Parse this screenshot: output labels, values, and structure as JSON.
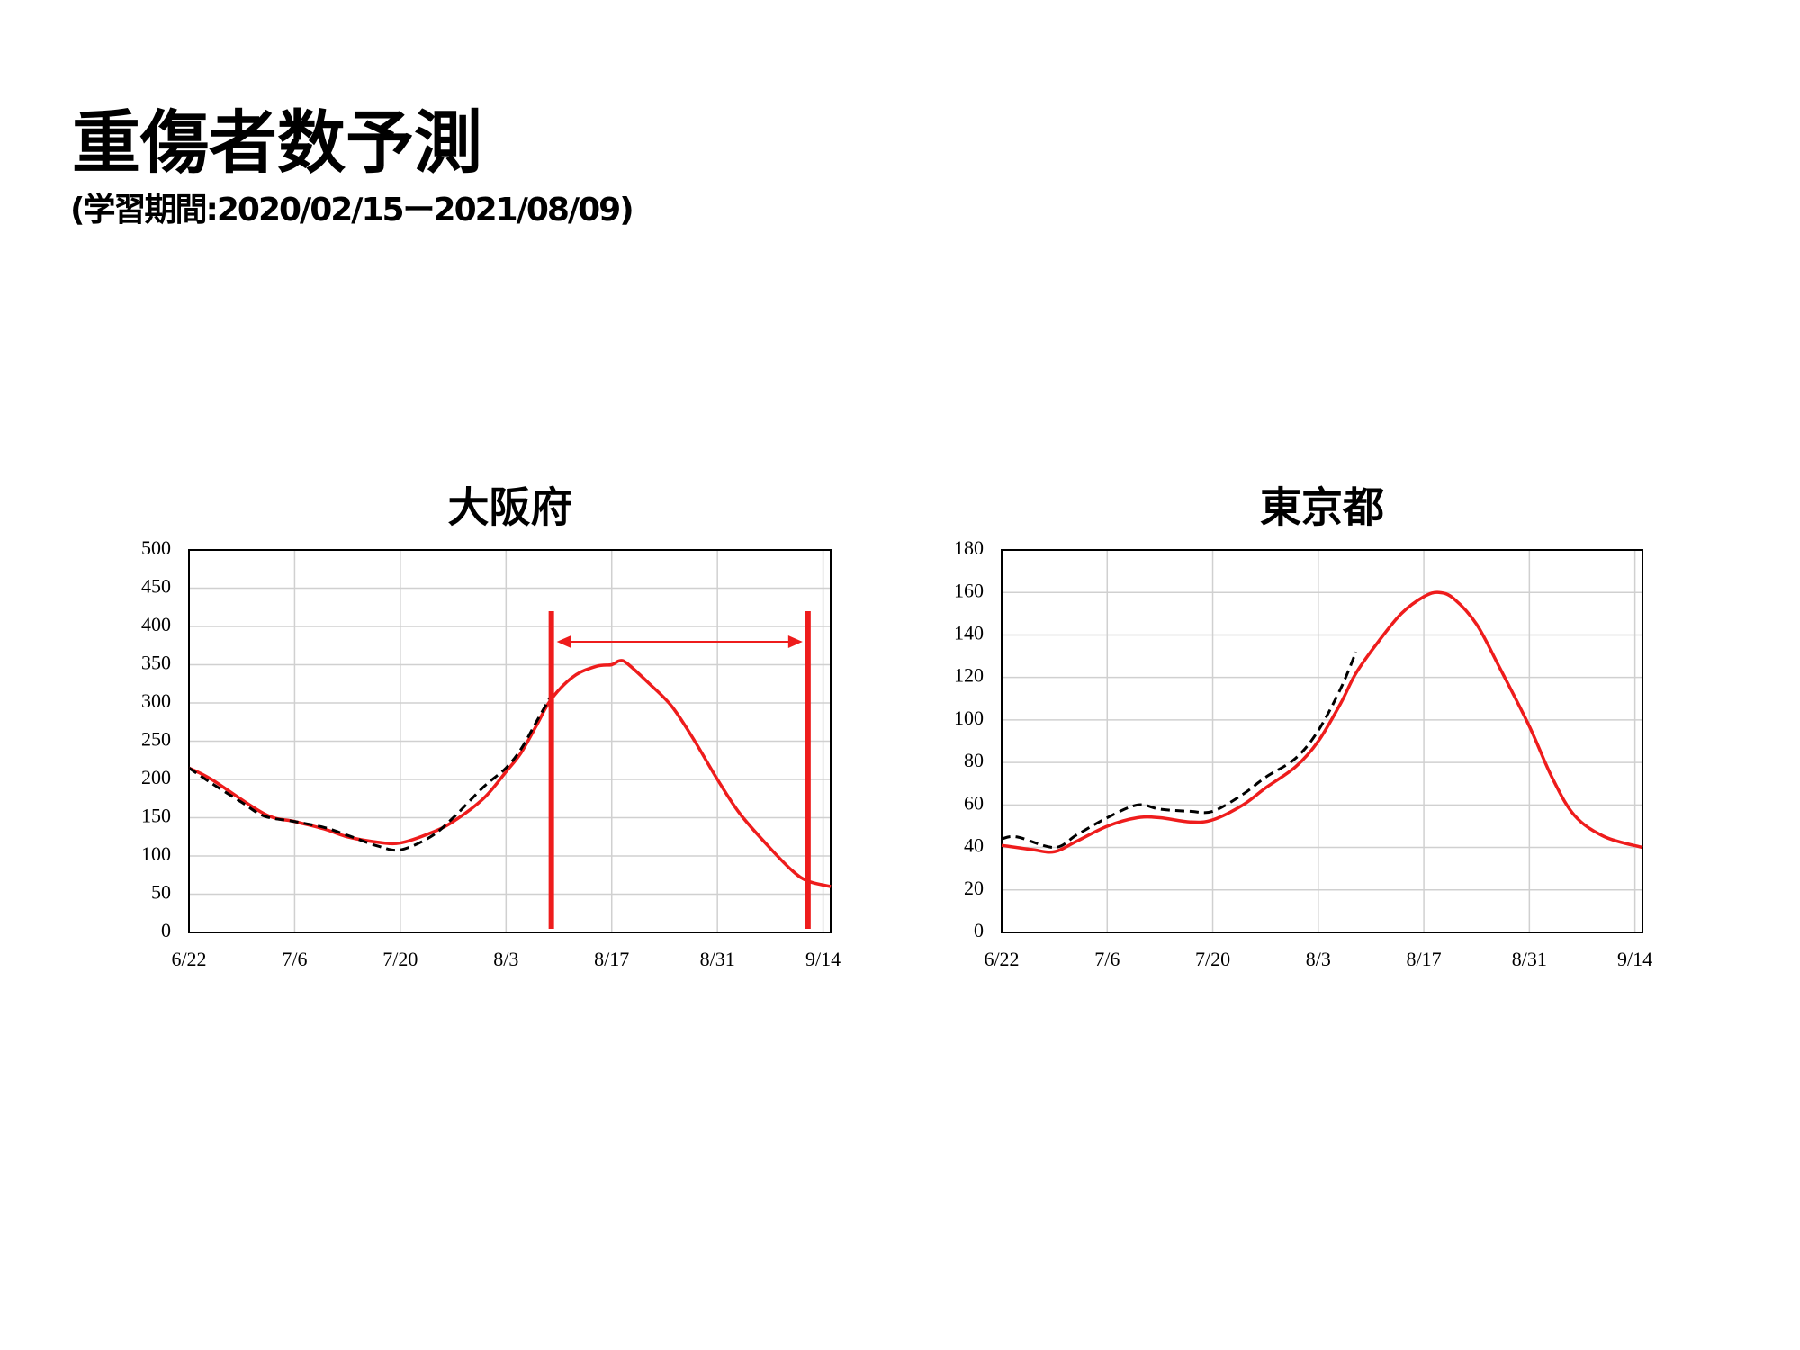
{
  "title": "重傷者数予測",
  "subtitle": "(学習期間:2020/02/15ー2021/08/09)",
  "chart_data": [
    {
      "type": "line",
      "title": "大阪府",
      "xlim": [
        "6/22",
        "9/15"
      ],
      "xticks": [
        "6/22",
        "7/6",
        "7/20",
        "8/3",
        "8/17",
        "8/31",
        "9/14"
      ],
      "ylim": [
        0,
        500
      ],
      "yticks": [
        0,
        50,
        100,
        150,
        200,
        250,
        300,
        350,
        400,
        450,
        500
      ],
      "grid": true,
      "vlines": [
        "8/9",
        "9/12"
      ],
      "vline_color": "#ee1c1c",
      "series": [
        {
          "color": "#ee1c1c",
          "dashed": false,
          "x": [
            "6/22",
            "6/25",
            "7/2",
            "7/6",
            "7/10",
            "7/13",
            "7/17",
            "7/20",
            "7/24",
            "7/27",
            "7/31",
            "8/3",
            "8/5",
            "8/7",
            "8/9",
            "8/12",
            "8/15",
            "8/17",
            "8/18",
            "8/19",
            "8/22",
            "8/25",
            "8/28",
            "8/31",
            "9/3",
            "9/7",
            "9/10",
            "9/12",
            "9/15"
          ],
          "values": [
            215,
            200,
            155,
            145,
            135,
            125,
            118,
            117,
            130,
            145,
            175,
            210,
            235,
            270,
            305,
            335,
            348,
            350,
            355,
            352,
            325,
            295,
            250,
            200,
            155,
            110,
            80,
            67,
            60
          ]
        },
        {
          "color": "#000000",
          "dashed": true,
          "x": [
            "6/22",
            "6/25",
            "6/29",
            "7/2",
            "7/6",
            "7/10",
            "7/13",
            "7/17",
            "7/20",
            "7/24",
            "7/27",
            "7/31",
            "8/3",
            "8/5",
            "8/7",
            "8/9"
          ],
          "values": [
            215,
            195,
            170,
            152,
            145,
            137,
            127,
            113,
            108,
            125,
            150,
            190,
            215,
            240,
            275,
            310
          ]
        }
      ]
    },
    {
      "type": "line",
      "title": "東京都",
      "xlim": [
        "6/22",
        "9/15"
      ],
      "xticks": [
        "6/22",
        "7/6",
        "7/20",
        "8/3",
        "8/17",
        "8/31",
        "9/14"
      ],
      "ylim": [
        0,
        180
      ],
      "yticks": [
        0,
        20,
        40,
        60,
        80,
        100,
        120,
        140,
        160,
        180
      ],
      "grid": true,
      "series": [
        {
          "color": "#ee1c1c",
          "dashed": false,
          "x": [
            "6/22",
            "6/26",
            "6/29",
            "7/2",
            "7/6",
            "7/10",
            "7/13",
            "7/17",
            "7/20",
            "7/24",
            "7/27",
            "7/31",
            "8/3",
            "8/6",
            "8/8",
            "8/11",
            "8/14",
            "8/17",
            "8/19",
            "8/21",
            "8/24",
            "8/27",
            "8/31",
            "9/3",
            "9/6",
            "9/10",
            "9/15"
          ],
          "values": [
            41,
            39,
            38,
            43,
            50,
            54,
            54,
            52,
            53,
            60,
            68,
            78,
            90,
            108,
            122,
            137,
            150,
            158,
            160,
            157,
            145,
            125,
            97,
            73,
            55,
            45,
            40
          ]
        },
        {
          "color": "#000000",
          "dashed": true,
          "x": [
            "6/22",
            "6/24",
            "6/29",
            "7/2",
            "7/6",
            "7/10",
            "7/13",
            "7/17",
            "7/20",
            "7/24",
            "7/27",
            "7/31",
            "8/3",
            "8/6",
            "8/8"
          ],
          "values": [
            44,
            45,
            40,
            46,
            54,
            60,
            58,
            57,
            57,
            65,
            73,
            82,
            95,
            115,
            132
          ]
        }
      ]
    }
  ]
}
